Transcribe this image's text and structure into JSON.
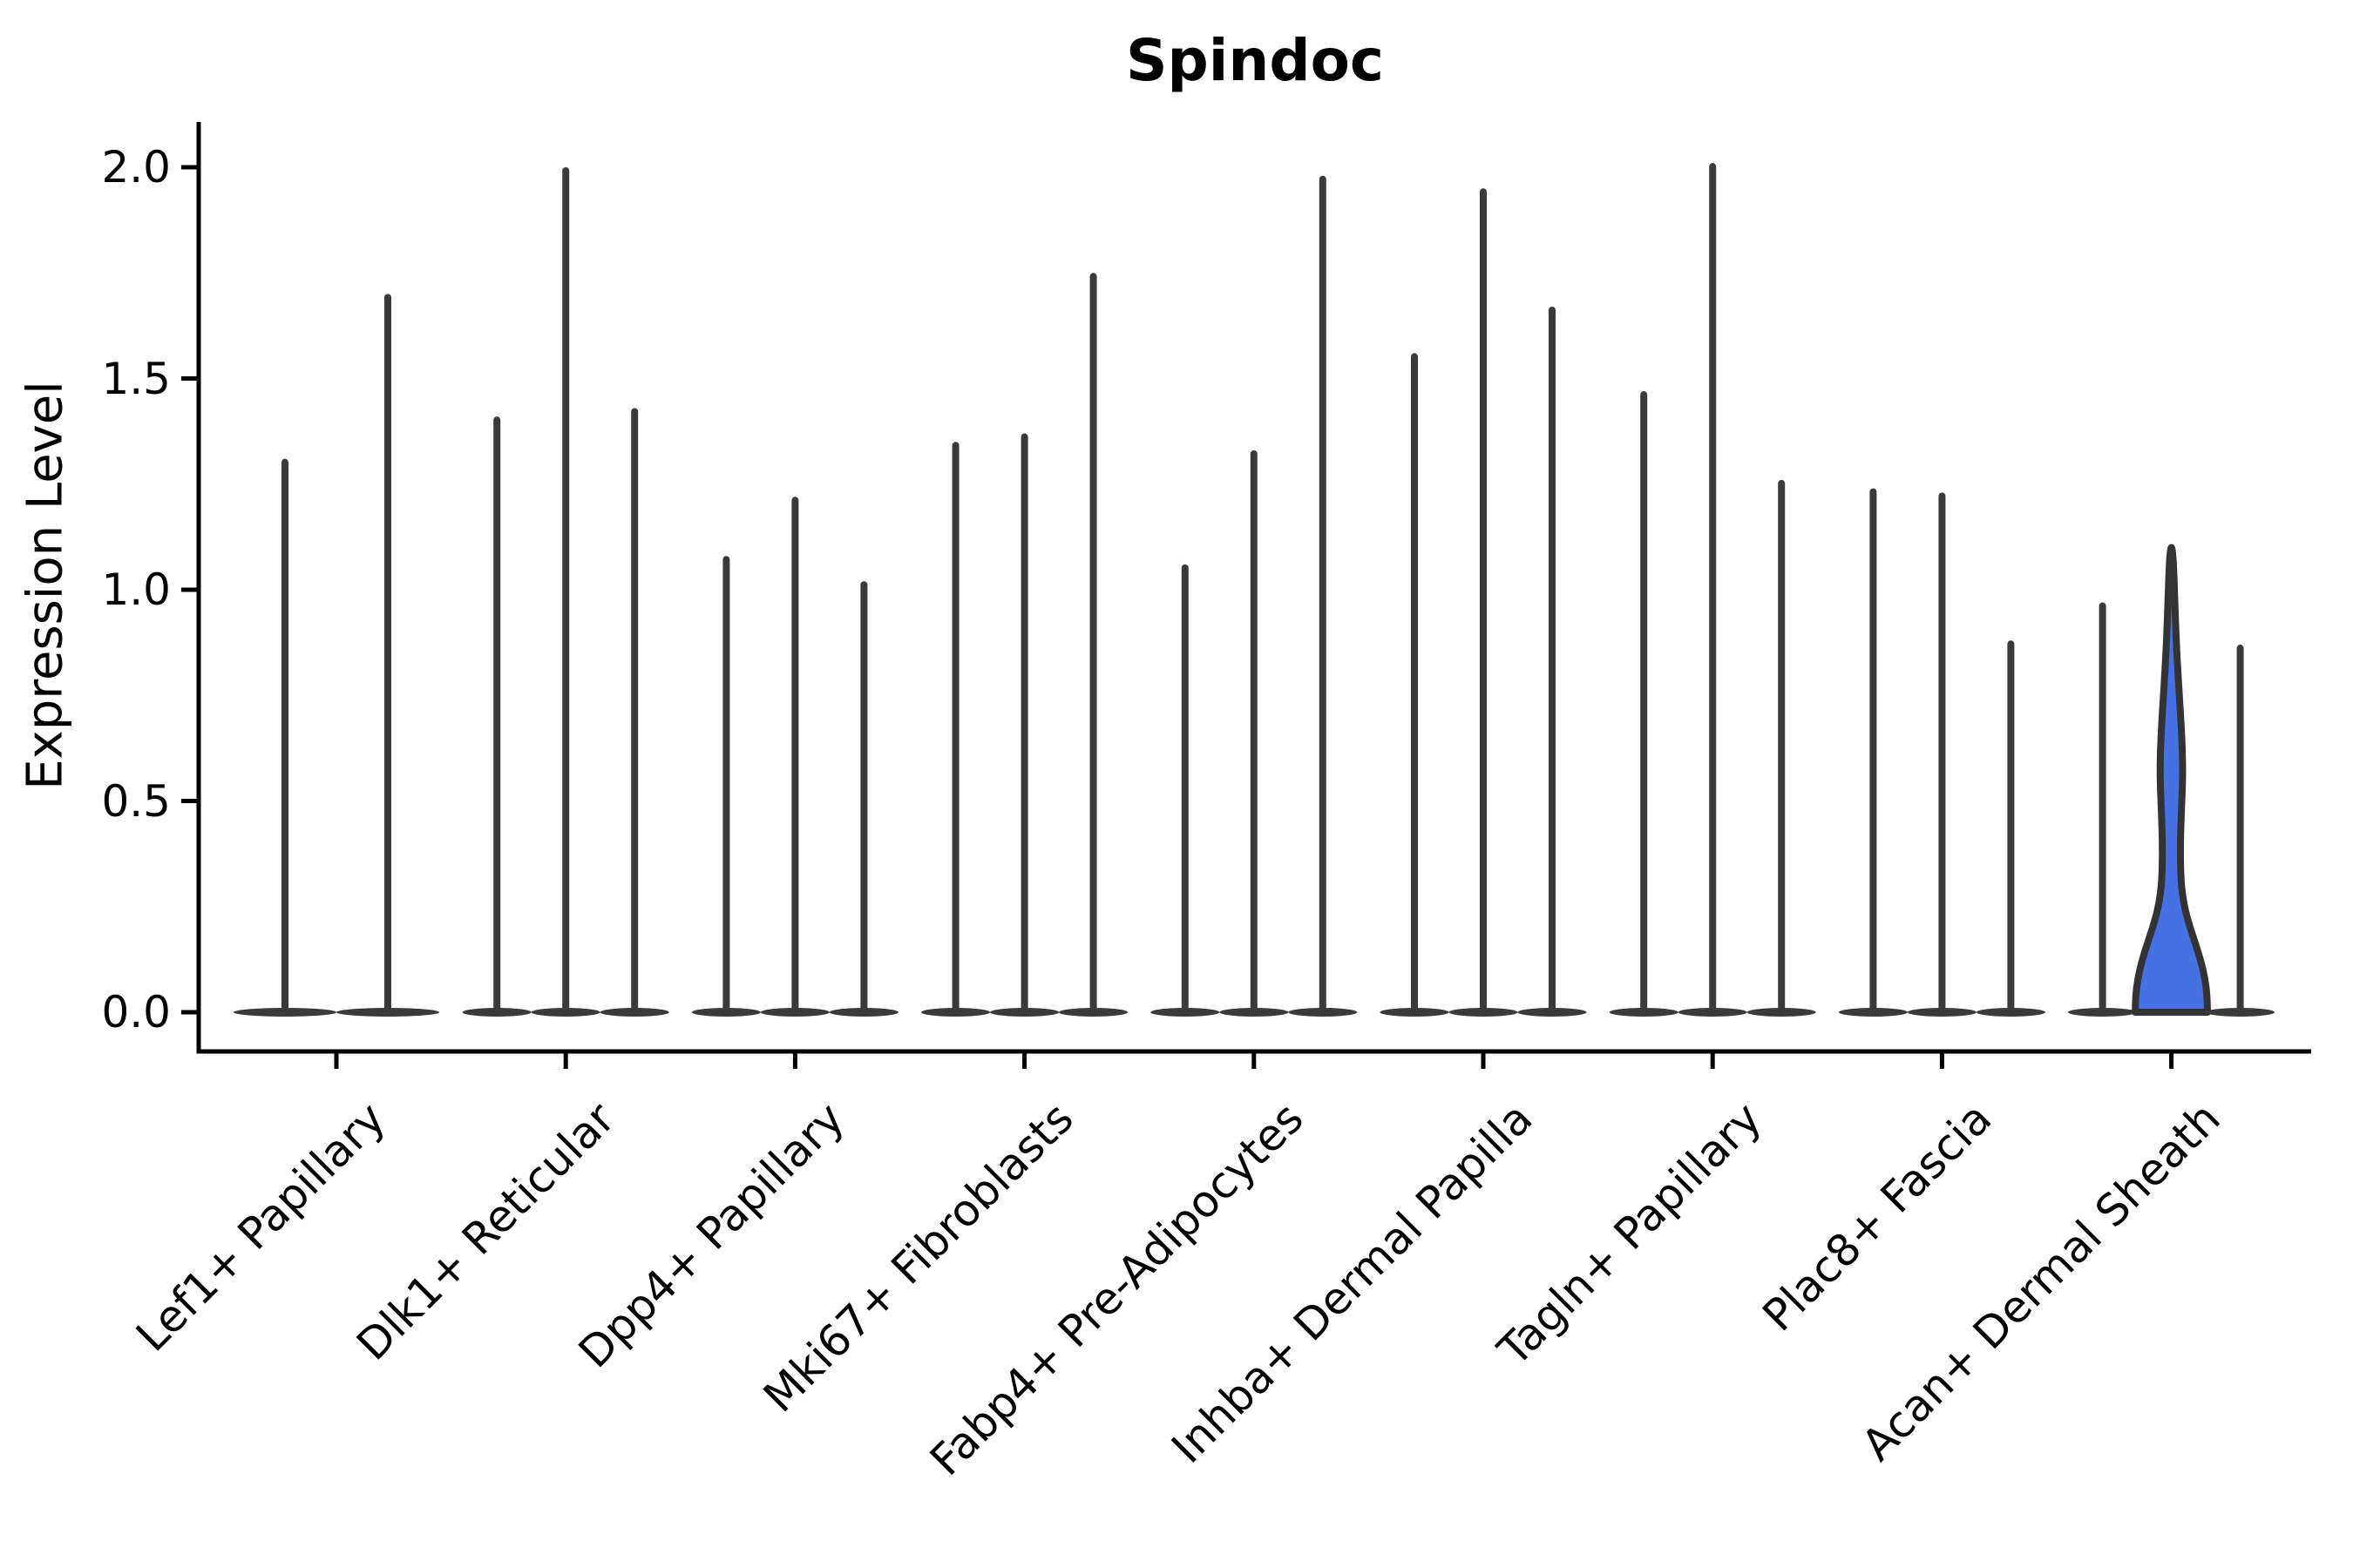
{
  "title": "Spindoc",
  "y_axis": {
    "label": "Expression Level",
    "tick_labels": [
      "0.0",
      "0.5",
      "1.0",
      "1.5",
      "2.0"
    ],
    "tick_values": [
      0.0,
      0.5,
      1.0,
      1.5,
      2.0
    ]
  },
  "x_axis": {
    "categories": [
      "Lef1+ Papillary",
      "Dlk1+ Reticular",
      "Dpp4+ Papillary",
      "Mki67+ Fibroblasts",
      "Fabp4+ Pre-Adipocytes",
      "Inhba+ Dermal Papilla",
      "Tagln+ Papillary",
      "Plac8+ Fascia",
      "Acan+ Dermal Sheath"
    ]
  },
  "colors": {
    "violin_line": "#3a3a3a",
    "outline": "#333333",
    "highlight_fill": "#4571e4",
    "text": "#000000",
    "background": "#ffffff"
  },
  "chart_data": {
    "type": "violin",
    "title": "Spindoc",
    "xlabel": "",
    "ylabel": "Expression Level",
    "ylim": [
      0,
      2.1
    ],
    "grid": false,
    "legend": false,
    "categories": [
      "Lef1+ Papillary",
      "Dlk1+ Reticular",
      "Dpp4+ Papillary",
      "Mki67+ Fibroblasts",
      "Fabp4+ Pre-Adipocytes",
      "Inhba+ Dermal Papilla",
      "Tagln+ Papillary",
      "Plac8+ Fascia",
      "Acan+ Dermal Sheath"
    ],
    "groups": [
      {
        "category": "Lef1+ Papillary",
        "violin_max_expression": [
          1.31,
          1.7
        ]
      },
      {
        "category": "Dlk1+ Reticular",
        "violin_max_expression": [
          1.41,
          2.0,
          1.43
        ]
      },
      {
        "category": "Dpp4+ Papillary",
        "violin_max_expression": [
          1.08,
          1.22,
          1.02
        ]
      },
      {
        "category": "Mki67+ Fibroblasts",
        "violin_max_expression": [
          1.35,
          1.37,
          1.75
        ]
      },
      {
        "category": "Fabp4+ Pre-Adipocytes",
        "violin_max_expression": [
          1.06,
          1.33,
          1.98
        ]
      },
      {
        "category": "Inhba+ Dermal Papilla",
        "violin_max_expression": [
          1.56,
          1.95,
          1.67
        ]
      },
      {
        "category": "Tagln+ Papillary",
        "violin_max_expression": [
          1.47,
          2.01,
          1.26
        ]
      },
      {
        "category": "Plac8+ Fascia",
        "violin_max_expression": [
          1.24,
          1.23,
          0.88
        ]
      },
      {
        "category": "Acan+ Dermal Sheath",
        "violin_max_expression": [
          0.97,
          1.1,
          0.87
        ]
      }
    ],
    "highlighted_violin": {
      "category": "Acan+ Dermal Sheath",
      "index_in_group": 1,
      "max_expression": 1.1,
      "fill_color": "#4571e4",
      "kde_profile_value_halfwidth": [
        [
          0.0,
          41.5
        ],
        [
          0.04,
          41.0
        ],
        [
          0.08,
          38.5
        ],
        [
          0.12,
          34.0
        ],
        [
          0.16,
          28.0
        ],
        [
          0.2,
          21.5
        ],
        [
          0.24,
          16.0
        ],
        [
          0.28,
          12.5
        ],
        [
          0.32,
          10.8
        ],
        [
          0.38,
          10.2
        ],
        [
          0.44,
          10.8
        ],
        [
          0.5,
          12.0
        ],
        [
          0.56,
          13.0
        ],
        [
          0.62,
          12.6
        ],
        [
          0.68,
          11.2
        ],
        [
          0.74,
          9.4
        ],
        [
          0.8,
          7.6
        ],
        [
          0.86,
          6.0
        ],
        [
          0.92,
          4.8
        ],
        [
          0.98,
          3.8
        ],
        [
          1.04,
          2.8
        ],
        [
          1.08,
          1.8
        ],
        [
          1.1,
          0.5
        ]
      ]
    },
    "style_note": "All violins except the highlighted one collapse to a thin vertical spike (expression mass at 0) sitting on a flat lens-shaped base."
  }
}
